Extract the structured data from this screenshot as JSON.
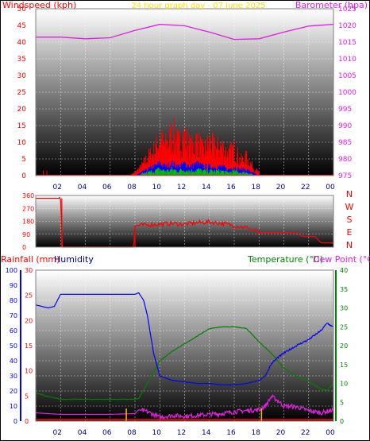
{
  "colors": {
    "windspeed": "#ff0000",
    "barometer": "#e020e0",
    "title": "#ffe000",
    "humidity": "#0000ff",
    "humidity_label": "#000080",
    "temperature": "#008000",
    "dew_point": "#e020e0",
    "rainfall": "#ff0000",
    "rain_axis": "#0000ff",
    "temp_axis": "#008000",
    "grid": "#ffffff"
  },
  "chart_data": [
    {
      "type": "line",
      "title": "24 hour graph day - 07 June 2025",
      "ylabel_left": "Windspeed (kph)",
      "ylabel_right": "Barometer (hpa)",
      "x_tick_labels": [
        "02",
        "04",
        "06",
        "08",
        "10",
        "12",
        "14",
        "16",
        "18",
        "20",
        "22",
        "00"
      ],
      "ylim_left": [
        0,
        50
      ],
      "yticks_left": [
        "0",
        "5",
        "10",
        "15",
        "20",
        "25",
        "30",
        "35",
        "40",
        "45",
        "50"
      ],
      "ylim_right": [
        975,
        1025
      ],
      "yticks_right": [
        "975",
        "980",
        "985",
        "990",
        "995",
        "1000",
        "1005",
        "1010",
        "1015",
        "1020",
        "1025"
      ],
      "grid": true,
      "series": [
        {
          "name": "Windspeed (kph)",
          "role": "wind_gust",
          "x": [
            0.0,
            0.5,
            1.0,
            7.5,
            8.0,
            8.5,
            9.0,
            9.5,
            10.0,
            10.5,
            11.0,
            11.5,
            12.0,
            12.5,
            13.0,
            13.5,
            14.0,
            14.5,
            15.0,
            15.5,
            16.0,
            16.5,
            17.0,
            17.5,
            18.0,
            24.0
          ],
          "values": [
            0,
            1,
            0,
            0,
            1,
            3,
            6,
            8,
            12,
            10,
            14,
            11,
            13,
            9,
            12,
            8,
            11,
            9,
            10,
            7,
            9,
            5,
            6,
            3,
            1,
            0
          ]
        },
        {
          "name": "Wind average",
          "role": "wind_avg",
          "x": [
            0.0,
            8.0,
            8.5,
            9.0,
            9.5,
            10.0,
            10.5,
            11.0,
            11.5,
            12.0,
            12.5,
            13.0,
            13.5,
            14.0,
            14.5,
            15.0,
            15.5,
            16.0,
            16.5,
            17.0,
            17.5,
            18.0,
            24.0
          ],
          "values": [
            0,
            0,
            1,
            2,
            3,
            4,
            3,
            4,
            3,
            4,
            3,
            4,
            3,
            3,
            3,
            3,
            2,
            3,
            2,
            2,
            1,
            0,
            0
          ]
        },
        {
          "name": "Barometer (hpa)",
          "x": [
            0.0,
            2.0,
            4.0,
            6.0,
            8.0,
            10.0,
            12.0,
            14.0,
            16.0,
            18.0,
            20.0,
            22.0,
            24.0
          ],
          "values": [
            1016.5,
            1016.5,
            1016.0,
            1016.3,
            1018.5,
            1020.3,
            1019.9,
            1018.0,
            1015.8,
            1016.0,
            1018.0,
            1019.8,
            1020.3
          ]
        }
      ]
    },
    {
      "type": "line",
      "ylabel_right": [
        "N",
        "W",
        "S",
        "E",
        "N"
      ],
      "yticks_left": [
        "0",
        "90",
        "180",
        "270",
        "360"
      ],
      "ylim_left": [
        0,
        360
      ],
      "grid": true,
      "series": [
        {
          "name": "Wind direction",
          "x": [
            0.0,
            1.9,
            1.95,
            2.0,
            2.05,
            2.1,
            7.9,
            8.0,
            9.0,
            10.0,
            11.0,
            12.0,
            13.0,
            14.0,
            15.0,
            16.0,
            17.0,
            17.5,
            18.0,
            20.0,
            21.0,
            21.5,
            22.5,
            23.0,
            24.0
          ],
          "values": [
            340,
            340,
            355,
            330,
            350,
            0,
            0,
            150,
            155,
            160,
            165,
            160,
            170,
            175,
            165,
            150,
            135,
            120,
            100,
            100,
            100,
            75,
            75,
            30,
            30
          ]
        }
      ]
    },
    {
      "type": "line",
      "ylabel_left_outer": "Rainfall (mm)",
      "ylabel_left_inner": "Humidity",
      "ylabel_right_outer": "Temperature (°C)",
      "ylabel_right_inner": "Dew Point (°C)",
      "x_tick_labels": [
        "02",
        "04",
        "06",
        "08",
        "10",
        "12",
        "14",
        "16",
        "18",
        "20",
        "22",
        "00"
      ],
      "yticks_humidity": [
        "0",
        "10",
        "20",
        "30",
        "40",
        "50",
        "60",
        "70",
        "80",
        "90",
        "100"
      ],
      "yticks_rainfall": [
        "0",
        "5",
        "10",
        "15",
        "20",
        "25",
        "30"
      ],
      "yticks_temperature": [
        "0",
        "5",
        "10",
        "15",
        "20",
        "25",
        "30",
        "35",
        "40"
      ],
      "ylim_humidity": [
        0,
        100
      ],
      "ylim_rainfall": [
        0,
        30
      ],
      "ylim_temperature": [
        0,
        40
      ],
      "grid": true,
      "series": [
        {
          "name": "Humidity",
          "x": [
            0.0,
            1.0,
            1.5,
            2.0,
            4.0,
            6.0,
            7.5,
            8.0,
            8.3,
            8.7,
            9.0,
            9.5,
            10.0,
            11.0,
            12.0,
            13.0,
            14.0,
            15.0,
            16.0,
            17.0,
            18.0,
            18.5,
            19.0,
            19.5,
            20.0,
            21.0,
            22.0,
            23.0,
            23.5,
            24.0
          ],
          "values": [
            77,
            75,
            76,
            84,
            84,
            84,
            84,
            84,
            85,
            80,
            70,
            45,
            30,
            27,
            26,
            25,
            25,
            24,
            24,
            25,
            27,
            30,
            38,
            42,
            45,
            50,
            54,
            60,
            65,
            62
          ]
        },
        {
          "name": "Temperature (°C)",
          "x": [
            0.0,
            1.0,
            2.0,
            4.0,
            6.0,
            8.0,
            8.3,
            9.0,
            10.0,
            11.0,
            12.0,
            13.0,
            14.0,
            15.0,
            16.0,
            17.0,
            18.0,
            19.0,
            20.0,
            21.0,
            22.0,
            23.0,
            23.5,
            24.0
          ],
          "values": [
            7.5,
            6.5,
            5.8,
            5.8,
            5.8,
            5.8,
            6.0,
            10.0,
            16.0,
            18.5,
            20.5,
            22.5,
            24.5,
            25.0,
            25.0,
            24.5,
            21.0,
            18.0,
            14.0,
            12.0,
            10.5,
            8.5,
            8.2,
            10.0
          ]
        },
        {
          "name": "Dew Point (°C)",
          "x": [
            0.0,
            1.0,
            2.0,
            4.0,
            6.0,
            8.0,
            8.3,
            9.0,
            10.0,
            11.0,
            12.0,
            13.0,
            14.0,
            15.0,
            16.0,
            17.0,
            18.0,
            18.5,
            19.0,
            19.5,
            20.0,
            21.0,
            22.0,
            23.0,
            24.0
          ],
          "values": [
            2.2,
            2.0,
            1.8,
            1.8,
            1.8,
            2.0,
            3.0,
            2.5,
            1.0,
            1.5,
            1.3,
            1.5,
            1.8,
            2.0,
            2.5,
            2.8,
            3.0,
            4.0,
            6.5,
            5.5,
            4.0,
            3.8,
            2.8,
            2.2,
            3.0
          ]
        },
        {
          "name": "Rainfall (mm)",
          "x": [
            0.0,
            24.0
          ],
          "values": [
            0.3,
            0.3
          ]
        },
        {
          "name": "Rain markers",
          "role": "rain_markers",
          "x": [
            7.3,
            18.2
          ],
          "values": [
            2.5,
            2.5
          ]
        }
      ]
    }
  ]
}
